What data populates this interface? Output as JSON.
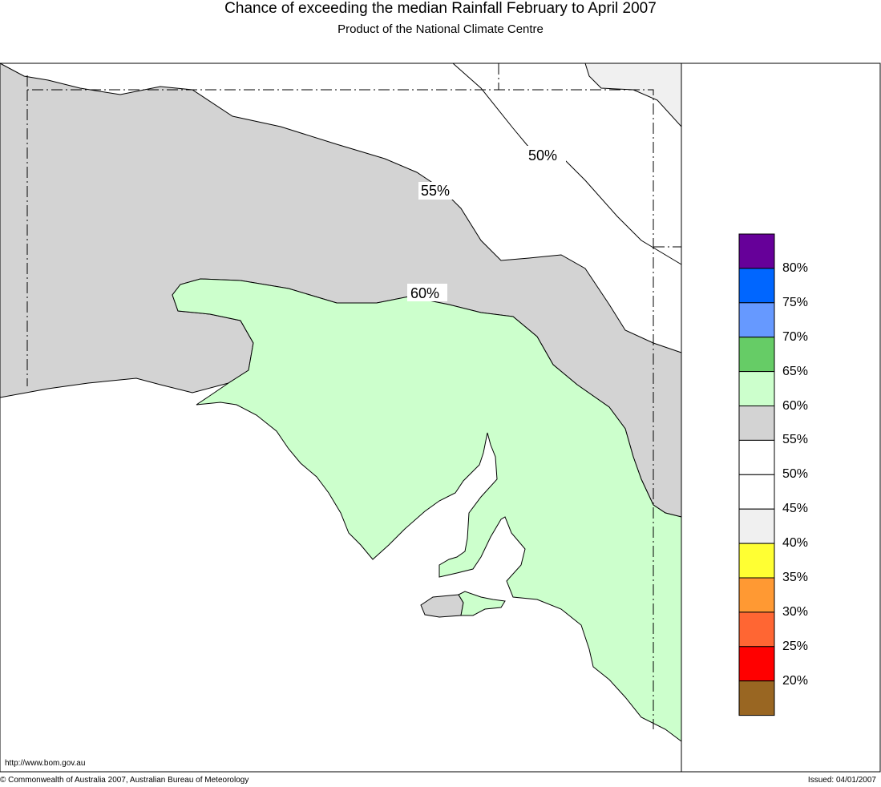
{
  "header": {
    "title": "Chance of exceeding the median Rainfall February to April 2007",
    "subtitle": "Product of the National Climate Centre"
  },
  "map": {
    "contour_labels": [
      "50%",
      "55%",
      "60%"
    ],
    "region_colors": {
      "c40": "#f0f0f0",
      "c50": "#ffffff",
      "c55": "#d3d3d3",
      "c60": "#ccffcc"
    }
  },
  "legend": {
    "colors": [
      "#660099",
      "#0066ff",
      "#6699ff",
      "#66cc66",
      "#ccffcc",
      "#d3d3d3",
      "#ffffff",
      "#ffffff",
      "#f0f0f0",
      "#ffff33",
      "#ff9933",
      "#ff6633",
      "#ff0000",
      "#996622"
    ],
    "labels": [
      "80%",
      "75%",
      "70%",
      "65%",
      "60%",
      "55%",
      "50%",
      "45%",
      "40%",
      "35%",
      "30%",
      "25%",
      "20%"
    ]
  },
  "footer": {
    "url": "http://www.bom.gov.au",
    "copyright": "© Commonwealth of Australia 2007, Australian Bureau of Meteorology",
    "issued": "Issued: 04/01/2007"
  }
}
